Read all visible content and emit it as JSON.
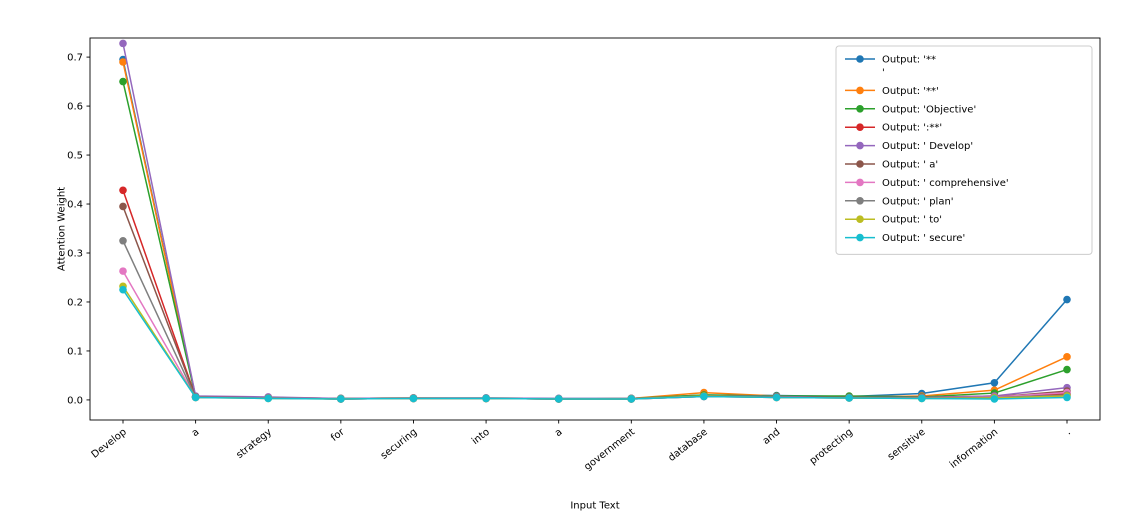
{
  "chart_data": {
    "type": "line",
    "title": "",
    "xlabel": "Input Text",
    "ylabel": "Attention Weight",
    "legend_position": "upper right",
    "grid": false,
    "ylim": [
      -0.041,
      0.739
    ],
    "yticks": [
      0.0,
      0.1,
      0.2,
      0.3,
      0.4,
      0.5,
      0.6,
      0.7
    ],
    "categories": [
      "Develop",
      "a",
      "strategy",
      "for",
      "securing",
      "into",
      "a",
      "government",
      "database",
      "and",
      "protecting",
      "sensitive",
      "information",
      "."
    ],
    "series": [
      {
        "name": "Output: '**\n'",
        "color": "#1f77b4",
        "values": [
          0.695,
          0.007,
          0.005,
          0.003,
          0.004,
          0.004,
          0.003,
          0.003,
          0.01,
          0.009,
          0.007,
          0.013,
          0.035,
          0.205
        ]
      },
      {
        "name": "Output: '**'",
        "color": "#ff7f0e",
        "values": [
          0.69,
          0.006,
          0.005,
          0.003,
          0.004,
          0.003,
          0.002,
          0.003,
          0.015,
          0.008,
          0.006,
          0.008,
          0.02,
          0.088
        ]
      },
      {
        "name": "Output: 'Objective'",
        "color": "#2ca02c",
        "values": [
          0.65,
          0.006,
          0.004,
          0.003,
          0.003,
          0.003,
          0.002,
          0.003,
          0.01,
          0.008,
          0.008,
          0.006,
          0.014,
          0.062
        ]
      },
      {
        "name": "Output: ':**'",
        "color": "#d62728",
        "values": [
          0.428,
          0.006,
          0.004,
          0.002,
          0.003,
          0.003,
          0.002,
          0.002,
          0.008,
          0.006,
          0.005,
          0.005,
          0.008,
          0.012
        ]
      },
      {
        "name": "Output: ' Develop'",
        "color": "#9467bd",
        "values": [
          0.728,
          0.008,
          0.006,
          0.003,
          0.004,
          0.004,
          0.003,
          0.003,
          0.008,
          0.007,
          0.005,
          0.005,
          0.008,
          0.025
        ]
      },
      {
        "name": "Output: ' a'",
        "color": "#8c564b",
        "values": [
          0.395,
          0.006,
          0.004,
          0.002,
          0.003,
          0.003,
          0.002,
          0.002,
          0.007,
          0.006,
          0.005,
          0.004,
          0.006,
          0.018
        ]
      },
      {
        "name": "Output: ' comprehensive'",
        "color": "#e377c2",
        "values": [
          0.263,
          0.005,
          0.004,
          0.002,
          0.003,
          0.003,
          0.002,
          0.002,
          0.007,
          0.005,
          0.004,
          0.004,
          0.006,
          0.015
        ]
      },
      {
        "name": "Output: ' plan'",
        "color": "#7f7f7f",
        "values": [
          0.325,
          0.005,
          0.004,
          0.002,
          0.003,
          0.003,
          0.002,
          0.002,
          0.007,
          0.005,
          0.004,
          0.004,
          0.005,
          0.01
        ]
      },
      {
        "name": "Output: ' to'",
        "color": "#bcbd22",
        "values": [
          0.232,
          0.005,
          0.003,
          0.002,
          0.003,
          0.003,
          0.002,
          0.002,
          0.008,
          0.005,
          0.004,
          0.003,
          0.004,
          0.008
        ]
      },
      {
        "name": "Output: ' secure'",
        "color": "#17becf",
        "values": [
          0.225,
          0.005,
          0.003,
          0.002,
          0.003,
          0.003,
          0.002,
          0.002,
          0.007,
          0.005,
          0.004,
          0.003,
          0.002,
          0.005
        ]
      }
    ]
  }
}
